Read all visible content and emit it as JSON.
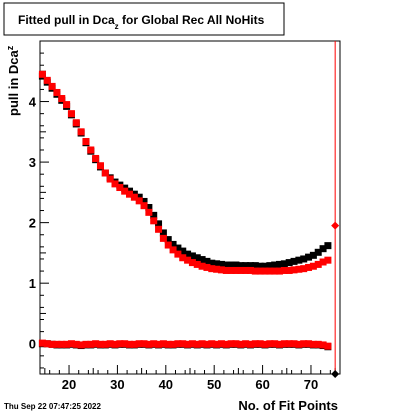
{
  "chart_data": {
    "type": "scatter",
    "title": "Fitted pull in Dca",
    "title_subscript": "z",
    "title_suffix": " for Global Rec All NoHits",
    "xlabel": "No. of Fit Points",
    "ylabel": "pull in Dca",
    "ylabel_subscript": "z",
    "xlim": [
      14,
      76
    ],
    "ylim": [
      -0.5,
      5.0
    ],
    "x_ticks": [
      20,
      30,
      40,
      50,
      60,
      70
    ],
    "y_ticks": [
      0,
      1,
      2,
      3,
      4
    ],
    "grid": false,
    "legend": "none",
    "x": [
      14.5,
      15.5,
      16.5,
      17.5,
      18.5,
      19.5,
      20.5,
      21.5,
      22.5,
      23.5,
      24.5,
      25.5,
      26.5,
      27.5,
      28.5,
      29.5,
      30.5,
      31.5,
      32.5,
      33.5,
      34.5,
      35.5,
      36.5,
      37.5,
      38.5,
      39.5,
      40.5,
      41.5,
      42.5,
      43.5,
      44.5,
      45.5,
      46.5,
      47.5,
      48.5,
      49.5,
      50.5,
      51.5,
      52.5,
      53.5,
      54.5,
      55.5,
      56.5,
      57.5,
      58.5,
      59.5,
      60.5,
      61.5,
      62.5,
      63.5,
      64.5,
      65.5,
      66.5,
      67.5,
      68.5,
      69.5,
      70.5,
      71.5,
      72.5,
      73.5
    ],
    "series": [
      {
        "color": "#000000",
        "values": [
          4.42,
          4.32,
          4.22,
          4.12,
          4.02,
          3.92,
          3.78,
          3.63,
          3.48,
          3.32,
          3.18,
          3.04,
          2.92,
          2.82,
          2.74,
          2.67,
          2.62,
          2.57,
          2.52,
          2.47,
          2.42,
          2.35,
          2.25,
          2.12,
          1.98,
          1.83,
          1.72,
          1.64,
          1.58,
          1.53,
          1.48,
          1.45,
          1.42,
          1.39,
          1.36,
          1.33,
          1.32,
          1.31,
          1.3,
          1.3,
          1.3,
          1.29,
          1.29,
          1.29,
          1.29,
          1.28,
          1.28,
          1.29,
          1.3,
          1.31,
          1.32,
          1.34,
          1.36,
          1.38,
          1.4,
          1.43,
          1.46,
          1.51,
          1.57,
          1.62
        ]
      },
      {
        "color": "#ff0000",
        "values": [
          4.45,
          4.35,
          4.25,
          4.15,
          4.05,
          3.95,
          3.8,
          3.65,
          3.5,
          3.34,
          3.2,
          3.06,
          2.94,
          2.82,
          2.72,
          2.64,
          2.58,
          2.52,
          2.47,
          2.42,
          2.36,
          2.28,
          2.17,
          2.03,
          1.89,
          1.74,
          1.63,
          1.55,
          1.48,
          1.42,
          1.38,
          1.34,
          1.31,
          1.28,
          1.26,
          1.24,
          1.23,
          1.22,
          1.21,
          1.21,
          1.21,
          1.21,
          1.21,
          1.21,
          1.2,
          1.2,
          1.2,
          1.2,
          1.2,
          1.2,
          1.21,
          1.21,
          1.22,
          1.23,
          1.24,
          1.26,
          1.28,
          1.31,
          1.35,
          1.38
        ]
      },
      {
        "color": "#000000",
        "values": [
          0.0,
          0.0,
          -0.01,
          -0.02,
          -0.02,
          -0.02,
          -0.01,
          -0.02,
          -0.03,
          -0.02,
          -0.02,
          -0.01,
          -0.02,
          -0.02,
          -0.01,
          -0.02,
          -0.01,
          -0.01,
          -0.02,
          -0.02,
          -0.01,
          -0.01,
          -0.02,
          -0.01,
          -0.02,
          -0.01,
          -0.02,
          -0.02,
          -0.01,
          -0.01,
          -0.02,
          -0.01,
          -0.02,
          -0.01,
          -0.02,
          -0.01,
          -0.02,
          -0.01,
          -0.02,
          -0.01,
          -0.01,
          -0.02,
          -0.01,
          -0.02,
          -0.01,
          -0.01,
          -0.02,
          -0.01,
          -0.01,
          -0.02,
          -0.01,
          -0.01,
          -0.01,
          -0.02,
          -0.01,
          -0.01,
          -0.02,
          -0.02,
          -0.03,
          -0.05
        ]
      },
      {
        "color": "#ff0000",
        "values": [
          0.01,
          0.0,
          -0.01,
          -0.01,
          -0.01,
          -0.01,
          0.0,
          -0.01,
          -0.02,
          -0.01,
          -0.01,
          0.0,
          -0.01,
          -0.01,
          0.0,
          -0.01,
          0.0,
          0.0,
          -0.01,
          -0.01,
          0.0,
          0.0,
          -0.01,
          0.0,
          -0.01,
          0.0,
          -0.01,
          -0.01,
          0.0,
          0.0,
          -0.01,
          0.0,
          -0.01,
          0.0,
          -0.01,
          0.0,
          -0.01,
          0.0,
          -0.01,
          0.0,
          0.0,
          -0.01,
          0.0,
          -0.01,
          0.0,
          0.0,
          -0.01,
          0.0,
          0.0,
          -0.01,
          0.0,
          0.0,
          0.0,
          -0.01,
          0.0,
          0.0,
          -0.01,
          -0.01,
          -0.02,
          -0.04
        ]
      }
    ],
    "overflow_marker": {
      "x": 75,
      "line_color": "#ff0000",
      "points": [
        {
          "y": 1.95,
          "color": "#ff0000"
        },
        {
          "y": -0.5,
          "color": "#000000"
        }
      ]
    },
    "footer": "Thu Sep 22 07:47:25 2022"
  }
}
